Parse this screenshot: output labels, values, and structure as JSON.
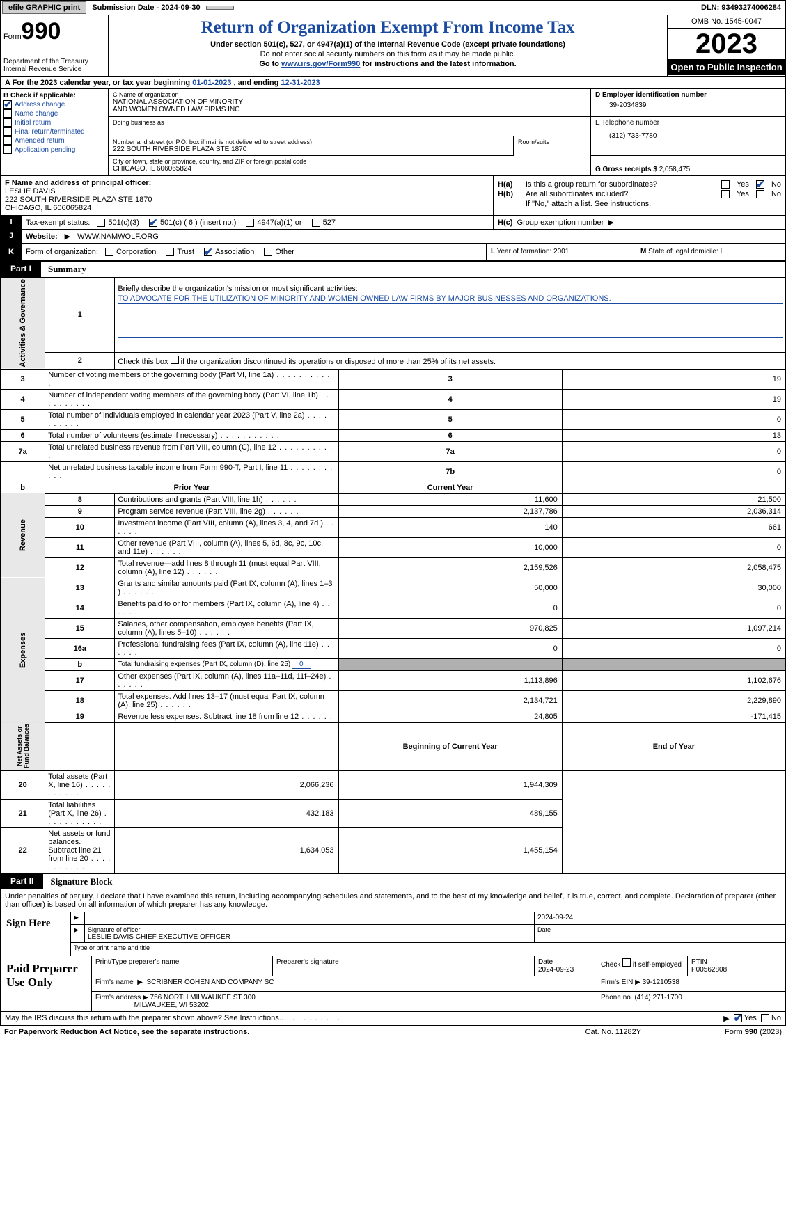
{
  "top": {
    "efile": "efile GRAPHIC print",
    "submission": "Submission Date - 2024-09-30",
    "dln": "DLN: 93493274006284"
  },
  "header": {
    "form_prefix": "Form",
    "form_number": "990",
    "dept": "Department of the Treasury\nInternal Revenue Service",
    "title": "Return of Organization Exempt From Income Tax",
    "subtitle": "Under section 501(c), 527, or 4947(a)(1) of the Internal Revenue Code (except private foundations)",
    "note1": "Do not enter social security numbers on this form as it may be made public.",
    "note2_prefix": "Go to ",
    "note2_link": "www.irs.gov/Form990",
    "note2_suffix": " for instructions and the latest information.",
    "omb": "OMB No. 1545-0047",
    "year": "2023",
    "open_pub": "Open to Public Inspection"
  },
  "line_a": {
    "prefix": "A For the 2023 calendar year, or tax year beginning ",
    "begin": "01-01-2023",
    "mid": "  , and ending ",
    "end": "12-31-2023"
  },
  "col_b": {
    "heading": "B Check if applicable:",
    "items": [
      {
        "label": "Address change",
        "checked": true
      },
      {
        "label": "Name change",
        "checked": false
      },
      {
        "label": "Initial return",
        "checked": false
      },
      {
        "label": "Final return/terminated",
        "checked": false
      },
      {
        "label": "Amended return",
        "checked": false
      },
      {
        "label": "Application pending",
        "checked": false
      }
    ]
  },
  "col_c": {
    "name_lbl": "C Name of organization",
    "name": "NATIONAL ASSOCIATION OF MINORITY\nAND WOMEN OWNED LAW FIRMS INC",
    "dba_lbl": "Doing business as",
    "street_lbl": "Number and street (or P.O. box if mail is not delivered to street address)",
    "street": "222 SOUTH RIVERSIDE PLAZA STE 1870",
    "room_lbl": "Room/suite",
    "city_lbl": "City or town, state or province, country, and ZIP or foreign postal code",
    "city": "CHICAGO, IL  606065824"
  },
  "col_de": {
    "d_lbl": "D Employer identification number",
    "ein": "39-2034839",
    "e_lbl": "E Telephone number",
    "phone": "(312) 733-7780",
    "g_lbl": "G Gross receipts $",
    "gross": "2,058,475"
  },
  "col_f": {
    "lbl": "F Name and address of principal officer:",
    "name": "LESLIE DAVIS",
    "street": "222 SOUTH RIVERSIDE PLAZA STE 1870",
    "city": "CHICAGO, IL  606065824"
  },
  "col_h": {
    "ha_lbl": "H(a)",
    "ha_txt": "Is this a group return for subordinates?",
    "hb_lbl": "H(b)",
    "hb_txt": "Are all subordinates included?",
    "hb_note": "If \"No,\" attach a list. See instructions.",
    "hc_lbl": "H(c)",
    "hc_txt": "Group exemption number",
    "arrow": "▶",
    "yes": "Yes",
    "no": "No",
    "ha_yes": false,
    "ha_no": true,
    "hb_yes": false,
    "hb_no": false
  },
  "row_i": {
    "lbl": "I",
    "txt": "Tax-exempt status:",
    "opts": [
      {
        "label": "501(c)(3)",
        "checked": false
      },
      {
        "label": "501(c) ( 6 ) (insert no.)",
        "checked": true
      },
      {
        "label": "4947(a)(1) or",
        "checked": false
      },
      {
        "label": "527",
        "checked": false
      }
    ]
  },
  "row_j": {
    "lbl": "J",
    "txt": "Website:",
    "arrow": "▶",
    "val": "WWW.NAMWOLF.ORG"
  },
  "row_k": {
    "lbl": "K",
    "txt": "Form of organization:",
    "opts": [
      {
        "label": "Corporation",
        "checked": false
      },
      {
        "label": "Trust",
        "checked": false
      },
      {
        "label": "Association",
        "checked": true
      },
      {
        "label": "Other",
        "checked": false
      }
    ]
  },
  "row_l": {
    "lbl": "L",
    "txt": "Year of formation: 2001"
  },
  "row_m": {
    "lbl": "M",
    "txt": "State of legal domicile: IL"
  },
  "part1": {
    "lbl": "Part I",
    "title": "Summary"
  },
  "summary": {
    "q1_lbl": "1",
    "q1_txt": "Briefly describe the organization's mission or most significant activities:",
    "q1_mission": "TO ADVOCATE FOR THE UTILIZATION OF MINORITY AND WOMEN OWNED LAW FIRMS BY MAJOR BUSINESSES AND ORGANIZATIONS.",
    "q2_lbl": "2",
    "q2_txt": "Check this box ",
    "q2_suffix": " if the organization discontinued its operations or disposed of more than 25% of its net assets.",
    "governance_rows": [
      {
        "n": "3",
        "txt": "Number of voting members of the governing body (Part VI, line 1a)",
        "box": "3",
        "val": "19"
      },
      {
        "n": "4",
        "txt": "Number of independent voting members of the governing body (Part VI, line 1b)",
        "box": "4",
        "val": "19"
      },
      {
        "n": "5",
        "txt": "Total number of individuals employed in calendar year 2023 (Part V, line 2a)",
        "box": "5",
        "val": "0"
      },
      {
        "n": "6",
        "txt": "Total number of volunteers (estimate if necessary)",
        "box": "6",
        "val": "13"
      },
      {
        "n": "7a",
        "txt": "Total unrelated business revenue from Part VIII, column (C), line 12",
        "box": "7a",
        "val": "0"
      },
      {
        "n": "",
        "txt": "Net unrelated business taxable income from Form 990-T, Part I, line 11",
        "box": "7b",
        "val": "0"
      }
    ],
    "b_lbl": "b",
    "prior_hdr": "Prior Year",
    "current_hdr": "Current Year",
    "revenue_rows": [
      {
        "n": "8",
        "txt": "Contributions and grants (Part VIII, line 1h)",
        "py": "11,600",
        "cy": "21,500"
      },
      {
        "n": "9",
        "txt": "Program service revenue (Part VIII, line 2g)",
        "py": "2,137,786",
        "cy": "2,036,314"
      },
      {
        "n": "10",
        "txt": "Investment income (Part VIII, column (A), lines 3, 4, and 7d )",
        "py": "140",
        "cy": "661"
      },
      {
        "n": "11",
        "txt": "Other revenue (Part VIII, column (A), lines 5, 6d, 8c, 9c, 10c, and 11e)",
        "py": "10,000",
        "cy": "0"
      },
      {
        "n": "12",
        "txt": "Total revenue—add lines 8 through 11 (must equal Part VIII, column (A), line 12)",
        "py": "2,159,526",
        "cy": "2,058,475"
      }
    ],
    "expense_rows": [
      {
        "n": "13",
        "txt": "Grants and similar amounts paid (Part IX, column (A), lines 1–3 )",
        "py": "50,000",
        "cy": "30,000"
      },
      {
        "n": "14",
        "txt": "Benefits paid to or for members (Part IX, column (A), line 4)",
        "py": "0",
        "cy": "0"
      },
      {
        "n": "15",
        "txt": "Salaries, other compensation, employee benefits (Part IX, column (A), lines 5–10)",
        "py": "970,825",
        "cy": "1,097,214"
      },
      {
        "n": "16a",
        "txt": "Professional fundraising fees (Part IX, column (A), line 11e)",
        "py": "0",
        "cy": "0"
      }
    ],
    "exp_b_n": "b",
    "exp_b_txt": "Total fundraising expenses (Part IX, column (D), line 25) ",
    "exp_b_val": "0",
    "expense_rows2": [
      {
        "n": "17",
        "txt": "Other expenses (Part IX, column (A), lines 11a–11d, 11f–24e)",
        "py": "1,113,896",
        "cy": "1,102,676"
      },
      {
        "n": "18",
        "txt": "Total expenses. Add lines 13–17 (must equal Part IX, column (A), line 25)",
        "py": "2,134,721",
        "cy": "2,229,890"
      },
      {
        "n": "19",
        "txt": "Revenue less expenses. Subtract line 18 from line 12",
        "py": "24,805",
        "cy": "-171,415"
      }
    ],
    "netassets_hdr1": "Beginning of Current Year",
    "netassets_hdr2": "End of Year",
    "netassets_rows": [
      {
        "n": "20",
        "txt": "Total assets (Part X, line 16)",
        "py": "2,066,236",
        "cy": "1,944,309"
      },
      {
        "n": "21",
        "txt": "Total liabilities (Part X, line 26)",
        "py": "432,183",
        "cy": "489,155"
      },
      {
        "n": "22",
        "txt": "Net assets or fund balances. Subtract line 21 from line 20",
        "py": "1,634,053",
        "cy": "1,455,154"
      }
    ],
    "vlabels": {
      "gov": "Activities & Governance",
      "rev": "Revenue",
      "exp": "Expenses",
      "net": "Net Assets or\nFund Balances"
    }
  },
  "part2": {
    "lbl": "Part II",
    "title": "Signature Block"
  },
  "sig": {
    "declare": "Under penalties of perjury, I declare that I have examined this return, including accompanying schedules and statements, and to the best of my knowledge and belief, it is true, correct, and complete. Declaration of preparer (other than officer) is based on all information of which preparer has any knowledge.",
    "sign_here": "Sign Here",
    "sig_officer_lbl": "Signature of officer",
    "sig_officer": "LESLIE DAVIS CHIEF EXECUTIVE OFFICER",
    "sig_date": "2024-09-24",
    "date_lbl": "Date",
    "type_lbl": "Type or print name and title"
  },
  "prep": {
    "lbl": "Paid Preparer Use Only",
    "print_lbl": "Print/Type preparer's name",
    "prep_sig_lbl": "Preparer's signature",
    "date_lbl": "Date",
    "date": "2024-09-23",
    "check_lbl": "Check",
    "check_suffix": "if self-employed",
    "ptin_lbl": "PTIN",
    "ptin": "P00562808",
    "firm_name_lbl": "Firm's name",
    "firm_name": "SCRIBNER COHEN AND COMPANY SC",
    "firm_ein_lbl": "Firm's EIN",
    "firm_ein": "39-1210538",
    "firm_addr_lbl": "Firm's address",
    "firm_addr1": "756 NORTH MILWAUKEE ST 300",
    "firm_addr2": "MILWAUKEE, WI  53202",
    "phone_lbl": "Phone no.",
    "phone": "(414) 271-1700"
  },
  "discuss": {
    "txt": "May the IRS discuss this return with the preparer shown above? See Instructions.",
    "yes": "Yes",
    "no": "No",
    "yes_checked": true,
    "no_checked": false
  },
  "footer": {
    "left": "For Paperwork Reduction Act Notice, see the separate instructions.",
    "mid": "Cat. No. 11282Y",
    "right": "Form 990 (2023)"
  }
}
